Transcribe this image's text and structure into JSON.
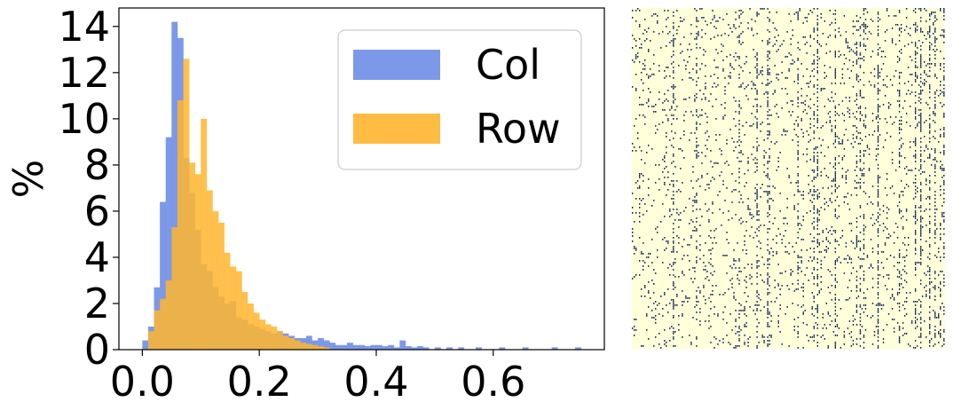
{
  "chart_data": [
    {
      "type": "bar",
      "subtype": "histogram-overlay",
      "title": "",
      "xlabel": "",
      "ylabel": "%",
      "xlim": [
        -0.04,
        0.79
      ],
      "ylim": [
        0,
        14.8
      ],
      "xticks": [
        "0.0",
        "0.2",
        "0.4",
        "0.6"
      ],
      "xtick_values": [
        0.0,
        0.2,
        0.4,
        0.6
      ],
      "yticks": [
        "0",
        "2",
        "4",
        "6",
        "8",
        "10",
        "12",
        "14"
      ],
      "ytick_values": [
        0,
        2,
        4,
        6,
        8,
        10,
        12,
        14
      ],
      "grid": false,
      "legend": {
        "placement": "upper-right"
      },
      "bin_width": 0.01,
      "series": [
        {
          "name": "Col",
          "color": "#6e8de6",
          "bins": [
            [
              0.0,
              0.01,
              0.4
            ],
            [
              0.01,
              0.02,
              1.0
            ],
            [
              0.02,
              0.03,
              2.7
            ],
            [
              0.03,
              0.04,
              6.4
            ],
            [
              0.04,
              0.05,
              9.2
            ],
            [
              0.05,
              0.06,
              14.2
            ],
            [
              0.06,
              0.07,
              13.5
            ],
            [
              0.07,
              0.08,
              8.3
            ],
            [
              0.08,
              0.09,
              6.8
            ],
            [
              0.09,
              0.1,
              5.2
            ],
            [
              0.1,
              0.11,
              3.7
            ],
            [
              0.11,
              0.12,
              3.4
            ],
            [
              0.12,
              0.13,
              2.7
            ],
            [
              0.13,
              0.14,
              2.3
            ],
            [
              0.14,
              0.15,
              2.0
            ],
            [
              0.15,
              0.16,
              2.1
            ],
            [
              0.16,
              0.17,
              1.4
            ],
            [
              0.17,
              0.18,
              1.3
            ],
            [
              0.18,
              0.19,
              1.1
            ],
            [
              0.19,
              0.2,
              1.0
            ],
            [
              0.2,
              0.21,
              0.9
            ],
            [
              0.21,
              0.22,
              0.8
            ],
            [
              0.22,
              0.23,
              0.7
            ],
            [
              0.23,
              0.24,
              0.8
            ],
            [
              0.24,
              0.25,
              0.7
            ],
            [
              0.25,
              0.26,
              0.6
            ],
            [
              0.26,
              0.27,
              0.5
            ],
            [
              0.27,
              0.28,
              0.5
            ],
            [
              0.28,
              0.29,
              0.6
            ],
            [
              0.29,
              0.3,
              0.4
            ],
            [
              0.3,
              0.31,
              0.5
            ],
            [
              0.31,
              0.32,
              0.4
            ],
            [
              0.32,
              0.33,
              0.3
            ],
            [
              0.33,
              0.34,
              0.2
            ],
            [
              0.34,
              0.35,
              0.2
            ],
            [
              0.35,
              0.36,
              0.3
            ],
            [
              0.36,
              0.37,
              0.2
            ],
            [
              0.37,
              0.38,
              0.2
            ],
            [
              0.38,
              0.39,
              0.15
            ],
            [
              0.39,
              0.4,
              0.2
            ],
            [
              0.4,
              0.41,
              0.2
            ],
            [
              0.41,
              0.42,
              0.15
            ],
            [
              0.42,
              0.43,
              0.2
            ],
            [
              0.43,
              0.44,
              0.1
            ],
            [
              0.44,
              0.45,
              0.4
            ],
            [
              0.45,
              0.46,
              0.15
            ],
            [
              0.46,
              0.47,
              0.1
            ],
            [
              0.47,
              0.48,
              0.15
            ],
            [
              0.48,
              0.49,
              0.1
            ],
            [
              0.5,
              0.51,
              0.1
            ],
            [
              0.52,
              0.53,
              0.1
            ],
            [
              0.54,
              0.55,
              0.1
            ],
            [
              0.57,
              0.58,
              0.1
            ],
            [
              0.61,
              0.62,
              0.1
            ],
            [
              0.65,
              0.66,
              0.1
            ],
            [
              0.7,
              0.71,
              0.1
            ],
            [
              0.74,
              0.75,
              0.1
            ]
          ]
        },
        {
          "name": "Row",
          "color": "#ffb52e",
          "bins": [
            [
              0.01,
              0.02,
              0.8
            ],
            [
              0.02,
              0.03,
              1.7
            ],
            [
              0.03,
              0.04,
              2.2
            ],
            [
              0.04,
              0.05,
              3.0
            ],
            [
              0.05,
              0.06,
              5.3
            ],
            [
              0.06,
              0.07,
              10.8
            ],
            [
              0.07,
              0.08,
              12.6
            ],
            [
              0.08,
              0.09,
              8.1
            ],
            [
              0.09,
              0.1,
              7.6
            ],
            [
              0.1,
              0.11,
              10.0
            ],
            [
              0.11,
              0.12,
              6.9
            ],
            [
              0.12,
              0.13,
              6.0
            ],
            [
              0.13,
              0.14,
              5.5
            ],
            [
              0.14,
              0.15,
              4.2
            ],
            [
              0.15,
              0.16,
              3.6
            ],
            [
              0.16,
              0.17,
              3.4
            ],
            [
              0.17,
              0.18,
              2.5
            ],
            [
              0.18,
              0.19,
              2.0
            ],
            [
              0.19,
              0.2,
              1.6
            ],
            [
              0.2,
              0.21,
              1.3
            ],
            [
              0.21,
              0.22,
              1.1
            ],
            [
              0.22,
              0.23,
              1.0
            ],
            [
              0.23,
              0.24,
              0.8
            ],
            [
              0.24,
              0.25,
              0.6
            ],
            [
              0.25,
              0.26,
              0.5
            ],
            [
              0.26,
              0.27,
              0.4
            ],
            [
              0.27,
              0.28,
              0.3
            ],
            [
              0.28,
              0.29,
              0.25
            ],
            [
              0.29,
              0.3,
              0.2
            ],
            [
              0.3,
              0.31,
              0.15
            ],
            [
              0.31,
              0.32,
              0.1
            ]
          ]
        }
      ]
    },
    {
      "type": "heatmap",
      "title": "",
      "colors": {
        "background": "#ffffd9",
        "mark": "#081d58"
      },
      "grid": false
    }
  ]
}
